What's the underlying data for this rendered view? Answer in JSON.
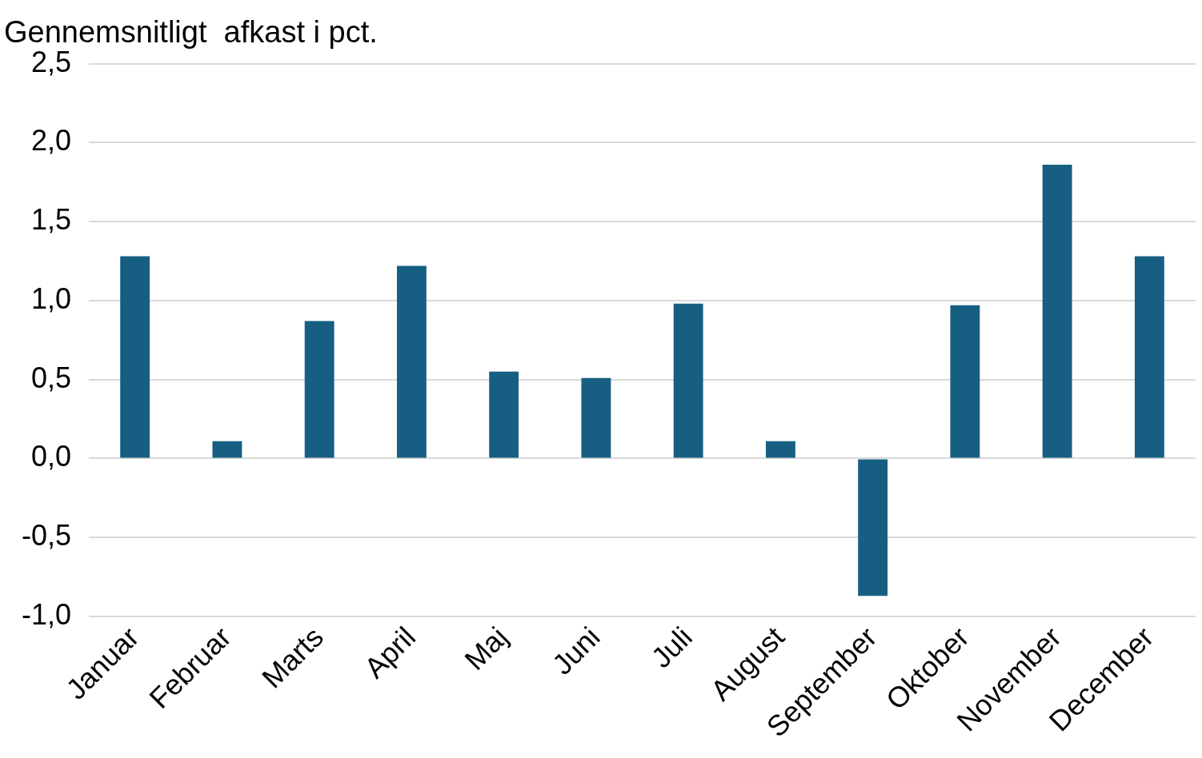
{
  "chart_data": {
    "type": "bar",
    "title": "Gennemsnitligt  afkast i pct.",
    "categories": [
      "Januar",
      "Februar",
      "Marts",
      "April",
      "Maj",
      "Juni",
      "Juli",
      "August",
      "September",
      "Oktober",
      "November",
      "December"
    ],
    "values": [
      1.28,
      0.11,
      0.87,
      1.22,
      0.55,
      0.51,
      0.98,
      0.11,
      -0.87,
      0.97,
      1.86,
      1.28
    ],
    "color": "#175f82",
    "ylim": [
      -1,
      2.5
    ],
    "yticks": [
      {
        "value": -1,
        "label": "-1,0"
      },
      {
        "value": -0.5,
        "label": "-0,5"
      },
      {
        "value": 0,
        "label": "0,0"
      },
      {
        "value": 0.5,
        "label": "0,5"
      },
      {
        "value": 1,
        "label": "1,0"
      },
      {
        "value": 1.5,
        "label": "1,5"
      },
      {
        "value": 2,
        "label": "2,0"
      },
      {
        "value": 2.5,
        "label": "2,5"
      }
    ],
    "grid": "y",
    "legend": false
  }
}
